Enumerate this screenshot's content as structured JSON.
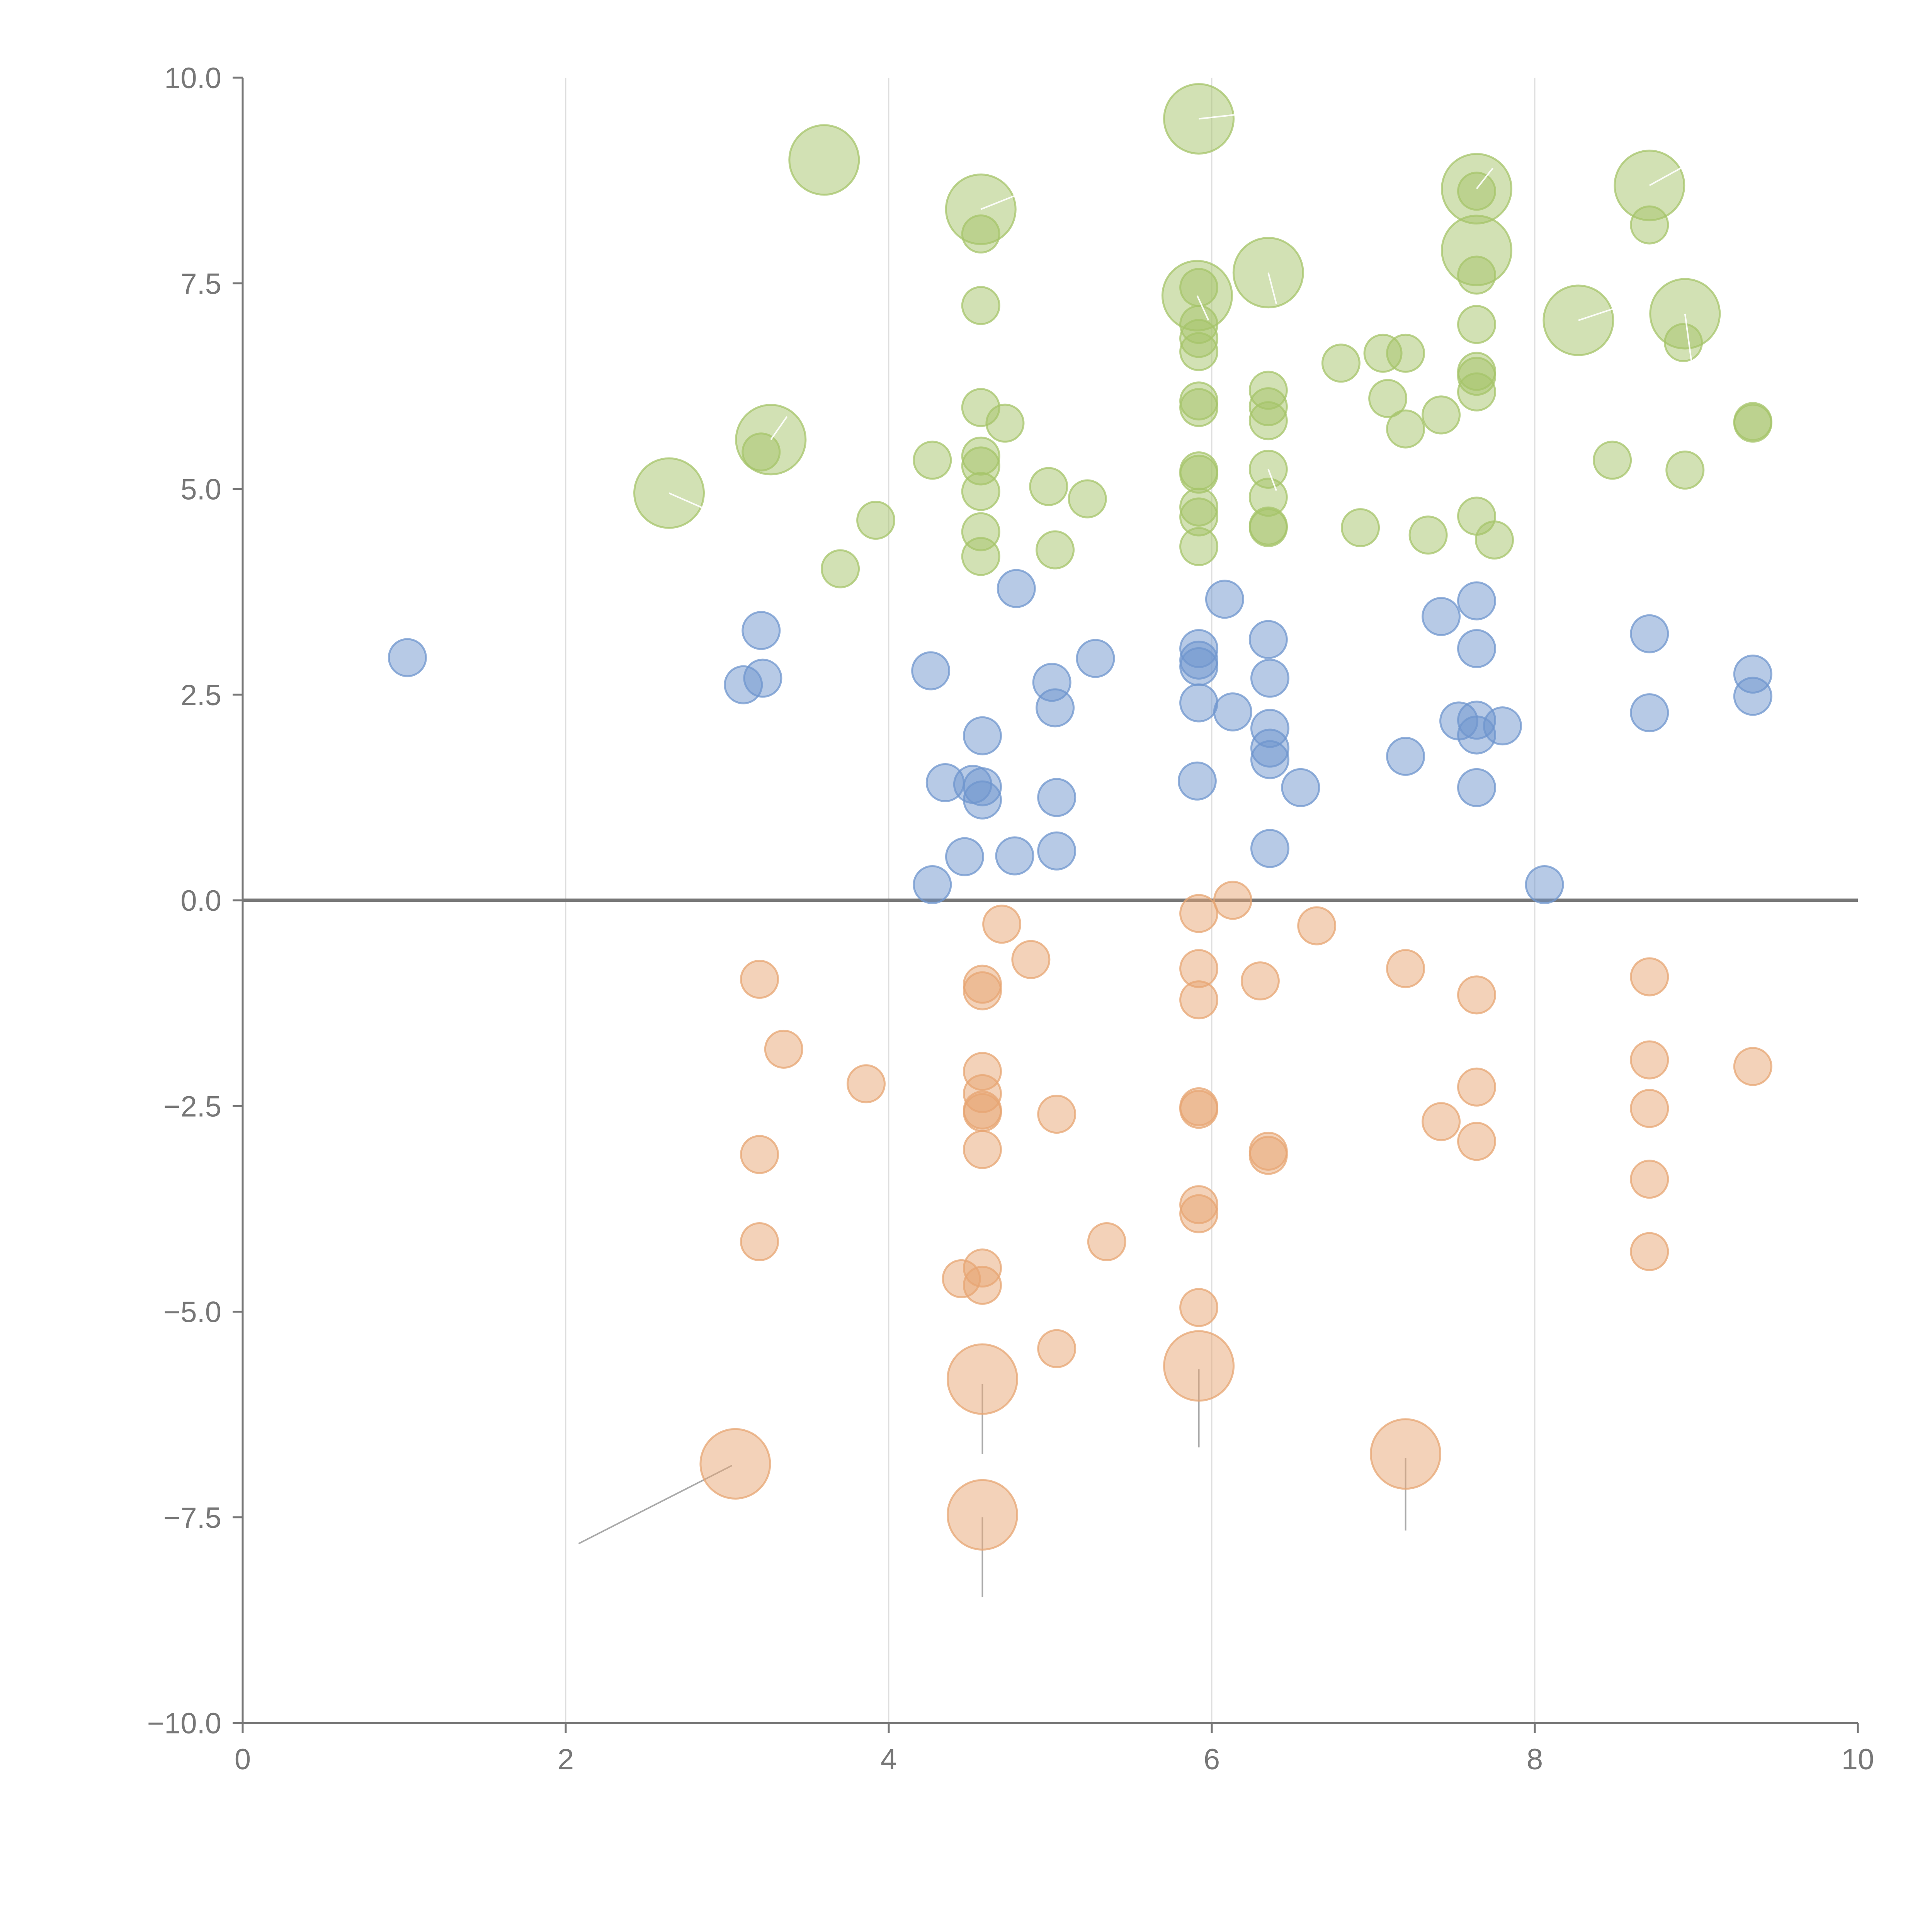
{
  "chart_data": {
    "type": "scatter",
    "title": "",
    "xlabel": "",
    "ylabel": "",
    "xlim": [
      0,
      10
    ],
    "ylim": [
      -10,
      10
    ],
    "x_ticks": [
      0,
      2,
      4,
      6,
      8,
      10
    ],
    "x_tick_labels": [
      "0",
      "2",
      "4",
      "6",
      "8",
      "10"
    ],
    "y_ticks": [
      10,
      7.5,
      5,
      2.5,
      0,
      -2.5,
      -5,
      -7.5,
      -10
    ],
    "y_tick_labels": [
      "10.0",
      "7.5",
      "5.0",
      "2.5",
      "0.0",
      "−2.5",
      "−5.0",
      "−7.5",
      "−10.0"
    ],
    "vertical_grid_at": [
      2,
      4,
      6,
      8
    ],
    "zero_line": true,
    "size_scale": {
      "small": 1,
      "large": 3
    },
    "series": [
      {
        "name": "positive-low",
        "color": "#6f96cd",
        "points": [
          [
            1.02,
            2.95,
            1
          ],
          [
            3.1,
            2.62,
            1
          ],
          [
            3.21,
            3.28,
            1
          ],
          [
            3.22,
            2.7,
            1
          ],
          [
            4.26,
            2.79,
            1
          ],
          [
            4.27,
            0.19,
            1
          ],
          [
            4.35,
            1.43,
            1
          ],
          [
            4.47,
            0.53,
            1
          ],
          [
            4.52,
            1.41,
            1
          ],
          [
            4.58,
            1.38,
            1
          ],
          [
            4.58,
            1.22,
            1
          ],
          [
            4.58,
            2.0,
            1
          ],
          [
            4.79,
            3.79,
            1
          ],
          [
            4.78,
            0.54,
            1
          ],
          [
            5.01,
            2.65,
            1
          ],
          [
            5.03,
            2.34,
            1
          ],
          [
            5.04,
            1.25,
            1
          ],
          [
            5.04,
            0.6,
            1
          ],
          [
            5.28,
            2.94,
            1
          ],
          [
            5.91,
            1.45,
            1
          ],
          [
            5.92,
            2.4,
            1
          ],
          [
            5.92,
            3.06,
            1
          ],
          [
            5.92,
            2.92,
            1
          ],
          [
            5.92,
            2.84,
            1
          ],
          [
            6.08,
            3.66,
            1
          ],
          [
            6.13,
            2.29,
            1
          ],
          [
            6.35,
            3.17,
            1
          ],
          [
            6.36,
            2.7,
            1
          ],
          [
            6.36,
            2.09,
            1
          ],
          [
            6.36,
            1.85,
            1
          ],
          [
            6.36,
            1.71,
            1
          ],
          [
            6.36,
            0.63,
            1
          ],
          [
            6.55,
            1.37,
            1
          ],
          [
            7.2,
            1.75,
            1
          ],
          [
            7.42,
            3.45,
            1
          ],
          [
            7.53,
            2.18,
            1
          ],
          [
            7.64,
            3.64,
            1
          ],
          [
            7.64,
            3.06,
            1
          ],
          [
            7.64,
            2.19,
            1
          ],
          [
            7.64,
            2.01,
            1
          ],
          [
            7.64,
            1.37,
            1
          ],
          [
            7.8,
            2.12,
            1
          ],
          [
            8.06,
            0.19,
            1
          ],
          [
            8.71,
            3.24,
            1
          ],
          [
            8.71,
            2.28,
            1
          ],
          [
            9.35,
            2.75,
            1
          ],
          [
            9.35,
            2.48,
            1
          ]
        ]
      },
      {
        "name": "positive-high",
        "color": "#a5c46a",
        "points": [
          [
            2.64,
            4.95,
            3
          ],
          [
            3.27,
            5.6,
            3
          ],
          [
            3.21,
            5.45,
            1
          ],
          [
            3.6,
            9.0,
            3
          ],
          [
            3.7,
            4.03,
            1
          ],
          [
            3.92,
            4.62,
            1
          ],
          [
            4.27,
            5.35,
            1
          ],
          [
            4.57,
            8.4,
            3
          ],
          [
            4.57,
            8.1,
            1
          ],
          [
            4.57,
            7.23,
            1
          ],
          [
            4.57,
            5.99,
            1
          ],
          [
            4.57,
            5.4,
            1
          ],
          [
            4.57,
            5.28,
            1
          ],
          [
            4.57,
            4.97,
            1
          ],
          [
            4.57,
            4.48,
            1
          ],
          [
            4.57,
            4.18,
            1
          ],
          [
            4.72,
            5.8,
            1
          ],
          [
            4.99,
            5.03,
            1
          ],
          [
            5.03,
            4.26,
            1
          ],
          [
            5.23,
            4.88,
            1
          ],
          [
            5.92,
            9.5,
            3
          ],
          [
            5.91,
            7.35,
            3
          ],
          [
            5.92,
            7.45,
            1
          ],
          [
            5.92,
            7.0,
            1
          ],
          [
            5.92,
            6.83,
            1
          ],
          [
            5.92,
            6.67,
            1
          ],
          [
            5.92,
            6.07,
            1
          ],
          [
            5.92,
            5.99,
            1
          ],
          [
            5.92,
            5.22,
            1
          ],
          [
            5.92,
            5.18,
            1
          ],
          [
            5.92,
            4.78,
            1
          ],
          [
            5.92,
            4.66,
            1
          ],
          [
            5.92,
            4.3,
            1
          ],
          [
            6.35,
            7.63,
            3
          ],
          [
            6.35,
            6.2,
            1
          ],
          [
            6.35,
            6.0,
            1
          ],
          [
            6.35,
            5.83,
            1
          ],
          [
            6.35,
            5.24,
            1
          ],
          [
            6.35,
            4.9,
            1
          ],
          [
            6.35,
            4.55,
            1
          ],
          [
            6.35,
            4.53,
            1
          ],
          [
            6.8,
            6.53,
            1
          ],
          [
            6.92,
            4.53,
            1
          ],
          [
            7.06,
            6.65,
            1
          ],
          [
            7.09,
            6.1,
            1
          ],
          [
            7.2,
            6.65,
            1
          ],
          [
            7.2,
            5.73,
            1
          ],
          [
            7.34,
            4.44,
            1
          ],
          [
            7.42,
            5.9,
            1
          ],
          [
            7.64,
            8.65,
            3
          ],
          [
            7.64,
            7.9,
            3
          ],
          [
            7.64,
            8.62,
            1
          ],
          [
            7.64,
            7.6,
            1
          ],
          [
            7.64,
            7.0,
            1
          ],
          [
            7.64,
            6.43,
            1
          ],
          [
            7.64,
            6.37,
            1
          ],
          [
            7.64,
            6.18,
            1
          ],
          [
            7.64,
            4.67,
            1
          ],
          [
            7.75,
            4.38,
            1
          ],
          [
            8.27,
            7.05,
            3
          ],
          [
            8.48,
            5.35,
            1
          ],
          [
            8.71,
            8.69,
            3
          ],
          [
            8.71,
            8.21,
            1
          ],
          [
            8.93,
            7.13,
            3
          ],
          [
            8.92,
            6.78,
            1
          ],
          [
            8.93,
            5.23,
            1
          ],
          [
            9.35,
            5.82,
            1
          ],
          [
            9.35,
            5.8,
            1
          ]
        ],
        "leaders": [
          [
            2.64,
            4.95,
            2.86,
            4.76
          ],
          [
            3.27,
            5.6,
            3.37,
            5.88
          ],
          [
            4.57,
            8.4,
            4.8,
            8.58
          ],
          [
            5.92,
            9.5,
            6.15,
            9.55
          ],
          [
            5.91,
            7.35,
            5.98,
            7.05
          ],
          [
            6.35,
            7.63,
            6.4,
            7.25
          ],
          [
            6.35,
            5.24,
            6.4,
            4.98
          ],
          [
            7.64,
            8.65,
            7.74,
            8.9
          ],
          [
            8.27,
            7.05,
            8.5,
            7.2
          ],
          [
            8.71,
            8.69,
            8.95,
            8.95
          ],
          [
            8.93,
            7.13,
            8.97,
            6.55
          ]
        ]
      },
      {
        "name": "negative",
        "color": "#e7a673",
        "points": [
          [
            3.05,
            -6.85,
            3
          ],
          [
            3.2,
            -0.96,
            1
          ],
          [
            3.2,
            -3.09,
            1
          ],
          [
            3.2,
            -4.15,
            1
          ],
          [
            3.35,
            -1.81,
            1
          ],
          [
            3.86,
            -2.23,
            1
          ],
          [
            4.45,
            -4.6,
            1
          ],
          [
            4.58,
            -5.82,
            3
          ],
          [
            4.58,
            -7.47,
            3
          ],
          [
            4.58,
            -1.02,
            1
          ],
          [
            4.58,
            -1.1,
            1
          ],
          [
            4.58,
            -2.08,
            1
          ],
          [
            4.58,
            -2.35,
            1
          ],
          [
            4.58,
            -2.55,
            1
          ],
          [
            4.58,
            -2.58,
            1
          ],
          [
            4.58,
            -3.03,
            1
          ],
          [
            4.58,
            -4.47,
            1
          ],
          [
            4.58,
            -4.68,
            1
          ],
          [
            4.7,
            -0.29,
            1
          ],
          [
            4.88,
            -0.72,
            1
          ],
          [
            5.04,
            -2.6,
            1
          ],
          [
            5.04,
            -5.45,
            1
          ],
          [
            5.35,
            -4.15,
            1
          ],
          [
            5.92,
            -5.66,
            3
          ],
          [
            5.92,
            -0.16,
            1
          ],
          [
            5.92,
            -0.83,
            1
          ],
          [
            5.92,
            -1.21,
            1
          ],
          [
            5.92,
            -2.51,
            1
          ],
          [
            5.92,
            -2.54,
            1
          ],
          [
            5.92,
            -3.7,
            1
          ],
          [
            5.92,
            -3.81,
            1
          ],
          [
            5.92,
            -4.95,
            1
          ],
          [
            6.13,
            0.0,
            1
          ],
          [
            6.3,
            -0.98,
            1
          ],
          [
            6.35,
            -3.05,
            1
          ],
          [
            6.35,
            -3.1,
            1
          ],
          [
            6.65,
            -0.31,
            1
          ],
          [
            7.2,
            -0.83,
            1
          ],
          [
            7.2,
            -6.73,
            3
          ],
          [
            7.42,
            -2.69,
            1
          ],
          [
            7.64,
            -1.15,
            1
          ],
          [
            7.64,
            -2.27,
            1
          ],
          [
            7.64,
            -2.93,
            1
          ],
          [
            8.71,
            -0.93,
            1
          ],
          [
            8.71,
            -1.94,
            1
          ],
          [
            8.71,
            -2.53,
            1
          ],
          [
            8.71,
            -3.39,
            1
          ],
          [
            8.71,
            -4.27,
            1
          ],
          [
            9.35,
            -2.02,
            1
          ]
        ],
        "leaders": [
          [
            3.03,
            -6.87,
            2.08,
            -7.82
          ],
          [
            4.58,
            -5.88,
            4.58,
            -6.73
          ],
          [
            4.58,
            -7.5,
            4.58,
            -8.47
          ],
          [
            5.92,
            -5.7,
            5.92,
            -6.65
          ],
          [
            7.2,
            -6.78,
            7.2,
            -7.66
          ]
        ]
      }
    ]
  }
}
